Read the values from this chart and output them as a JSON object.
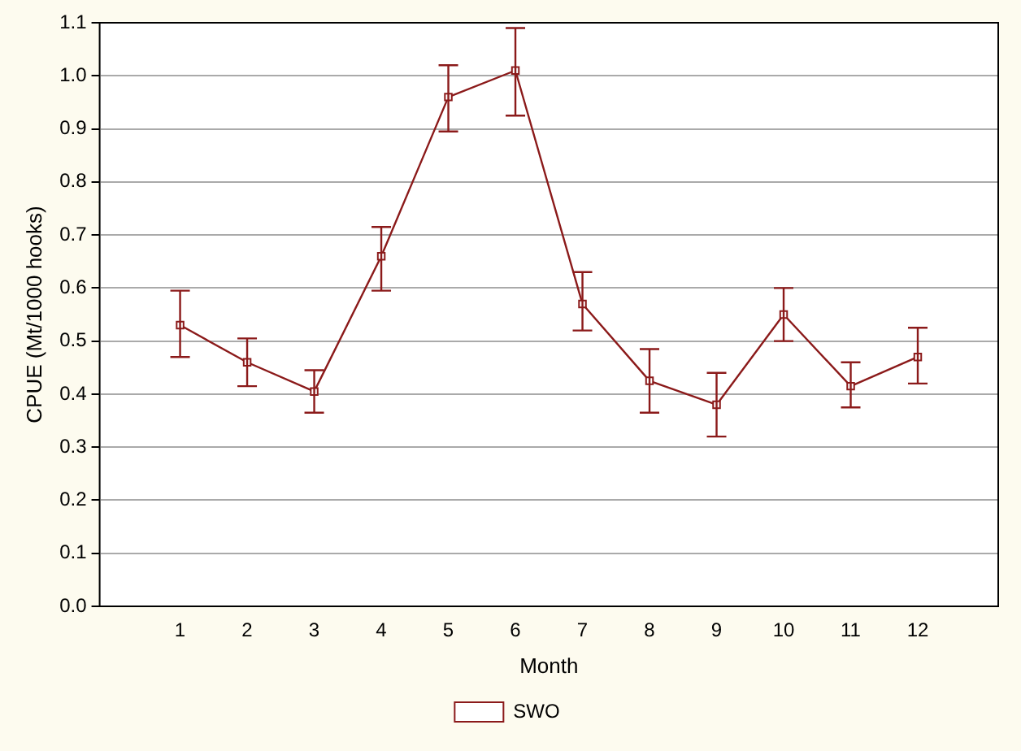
{
  "chart_data": {
    "type": "line",
    "xlabel": "Month",
    "ylabel": "CPUE (Mt/1000 hooks)",
    "x": [
      1,
      2,
      3,
      4,
      5,
      6,
      7,
      8,
      9,
      10,
      11,
      12
    ],
    "series": [
      {
        "name": "SWO",
        "color": "#8b1a1a",
        "values": [
          0.53,
          0.46,
          0.405,
          0.66,
          0.96,
          1.01,
          0.57,
          0.425,
          0.38,
          0.55,
          0.415,
          0.47
        ],
        "errors": [
          [
            0.47,
            0.595
          ],
          [
            0.415,
            0.505
          ],
          [
            0.365,
            0.445
          ],
          [
            0.595,
            0.715
          ],
          [
            0.895,
            1.02
          ],
          [
            0.925,
            1.09
          ],
          [
            0.52,
            0.63
          ],
          [
            0.365,
            0.485
          ],
          [
            0.32,
            0.44
          ],
          [
            0.5,
            0.6
          ],
          [
            0.375,
            0.46
          ],
          [
            0.42,
            0.525
          ]
        ]
      }
    ],
    "xlim": [
      -0.2,
      13.2
    ],
    "xticks": [
      1,
      2,
      3,
      4,
      5,
      6,
      7,
      8,
      9,
      10,
      11,
      12
    ],
    "ylim": [
      0,
      1.1
    ],
    "yticks": [
      {
        "value": 0,
        "label": "0.0"
      },
      0.1,
      0.2,
      0.3,
      0.4,
      0.5,
      0.6,
      0.7,
      0.8,
      0.9,
      {
        "value": 1,
        "label": "1.0"
      },
      1.1
    ],
    "grid": "y",
    "legend": "bottom",
    "marker": "square",
    "line_style": "solid"
  }
}
